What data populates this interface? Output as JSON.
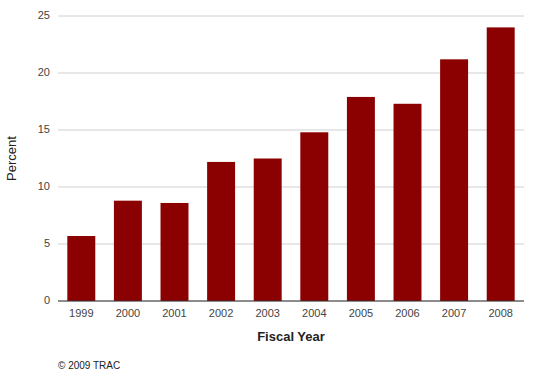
{
  "chart_data": {
    "type": "bar",
    "categories": [
      "1999",
      "2000",
      "2001",
      "2002",
      "2003",
      "2004",
      "2005",
      "2006",
      "2007",
      "2008"
    ],
    "values": [
      5.7,
      8.8,
      8.6,
      12.2,
      12.5,
      14.8,
      17.9,
      17.3,
      21.2,
      24.0
    ],
    "color": "#8B0000",
    "xlabel": "Fiscal Year",
    "ylabel": "Percent",
    "ylim": [
      0,
      25
    ],
    "yticks": [
      0,
      5,
      10,
      15,
      20,
      25
    ],
    "grid": true,
    "annotations": [
      "© 2009 TRAC"
    ]
  }
}
